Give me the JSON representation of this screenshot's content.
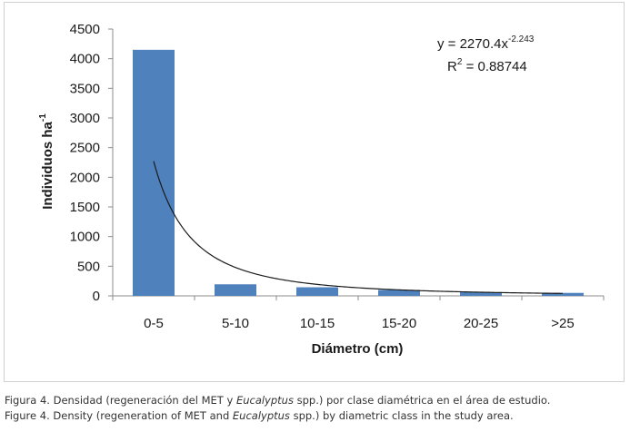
{
  "chart_data": {
    "type": "bar",
    "categories": [
      "0-5",
      "5-10",
      "10-15",
      "15-20",
      "20-25",
      ">25"
    ],
    "values": [
      4150,
      195,
      145,
      100,
      60,
      50
    ],
    "bar_color": "#4f81bd",
    "xlabel": "Diámetro (cm)",
    "ylabel": "Individuos  ha",
    "ylabel_superscript": "-1",
    "ylim": [
      0,
      4500
    ],
    "yticks": [
      0,
      500,
      1000,
      1500,
      2000,
      2500,
      3000,
      3500,
      4000,
      4500
    ],
    "grid": false,
    "trendline": {
      "type": "power",
      "coefficient": 2270.4,
      "exponent": -2.243,
      "equation_base": "y = 2270.4x",
      "equation_exponent": "-2.243",
      "r2_label": "R",
      "r2_superscript": "2",
      "r2_value": " = 0.88744",
      "color": "#1a1a1a"
    }
  },
  "caption": {
    "es_prefix": "Figura 4. Densidad (regeneración del MET y ",
    "es_italic": "Eucalyptus",
    "es_suffix": " spp.) por clase diamétrica en el área de estudio.",
    "en_prefix": "Figure 4. Density (regeneration of MET and ",
    "en_italic": "Eucalyptus",
    "en_suffix": " spp.) by diametric class in the study area."
  }
}
